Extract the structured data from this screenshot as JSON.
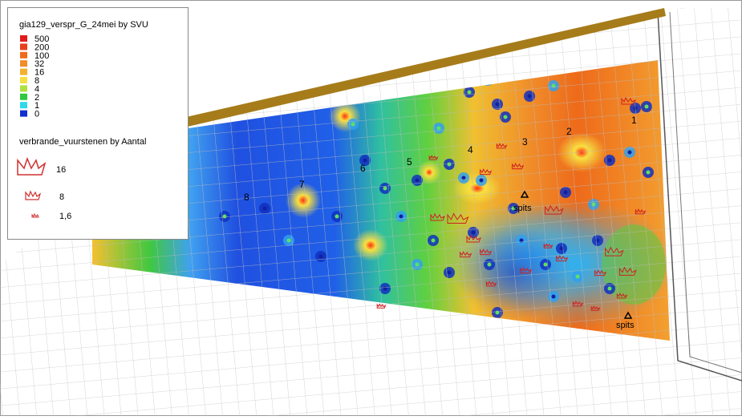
{
  "legend": {
    "title": "gia129_verspr_G_24mei by SVU",
    "classes": [
      {
        "label": "500",
        "color": "#e31a1c"
      },
      {
        "label": "200",
        "color": "#e8401a"
      },
      {
        "label": "100",
        "color": "#f06a1a"
      },
      {
        "label": "32",
        "color": "#f08c2a"
      },
      {
        "label": "16",
        "color": "#f5b030"
      },
      {
        "label": "8",
        "color": "#f5e040"
      },
      {
        "label": "4",
        "color": "#b0e040"
      },
      {
        "label": "2",
        "color": "#30c840"
      },
      {
        "label": "1",
        "color": "#30d8e8"
      },
      {
        "label": "0",
        "color": "#1030d0"
      }
    ],
    "symbol_title": "verbrande_vuurstenen by Aantal",
    "symbols": [
      {
        "label": "16"
      },
      {
        "label": "8"
      },
      {
        "label": "1,6"
      }
    ]
  },
  "map": {
    "labels": [
      "1",
      "2",
      "3",
      "4",
      "5",
      "6",
      "7",
      "8"
    ],
    "spits": [
      "spits",
      "spits"
    ]
  }
}
